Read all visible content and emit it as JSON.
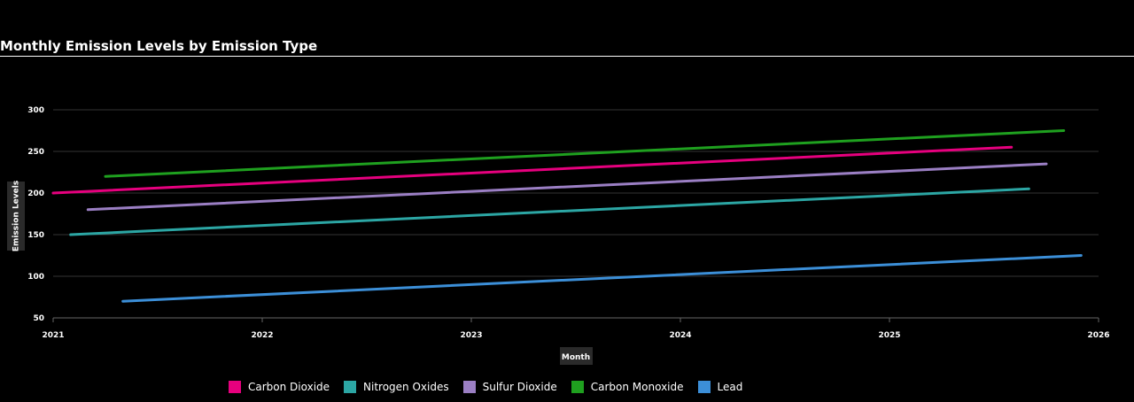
{
  "chart_data": {
    "type": "line",
    "title": "Monthly Emission Levels by Emission Type",
    "xlabel": "Month",
    "ylabel": "Emission Levels",
    "xlim": [
      2021,
      2026
    ],
    "ylim": [
      50,
      300
    ],
    "xticks": [
      "2021",
      "2022",
      "2023",
      "2024",
      "2025",
      "2026"
    ],
    "yticks": [
      50,
      100,
      150,
      200,
      250,
      300
    ],
    "grid": true,
    "legend_position": "bottom",
    "series": [
      {
        "name": "Carbon Dioxide",
        "color": "#e6007e",
        "x": [
          "2021-01",
          "2025-08"
        ],
        "y": [
          200,
          255
        ]
      },
      {
        "name": "Nitrogen Oxides",
        "color": "#2ca6a4",
        "x": [
          "2021-02",
          "2025-09"
        ],
        "y": [
          150,
          205
        ]
      },
      {
        "name": "Sulfur Dioxide",
        "color": "#9b7fc4",
        "x": [
          "2021-03",
          "2025-10"
        ],
        "y": [
          180,
          235
        ]
      },
      {
        "name": "Carbon Monoxide",
        "color": "#1fa01f",
        "x": [
          "2021-04",
          "2025-11"
        ],
        "y": [
          220,
          275
        ]
      },
      {
        "name": "Lead",
        "color": "#3c8fd8",
        "x": [
          "2021-05",
          "2025-12"
        ],
        "y": [
          70,
          125
        ]
      }
    ]
  }
}
